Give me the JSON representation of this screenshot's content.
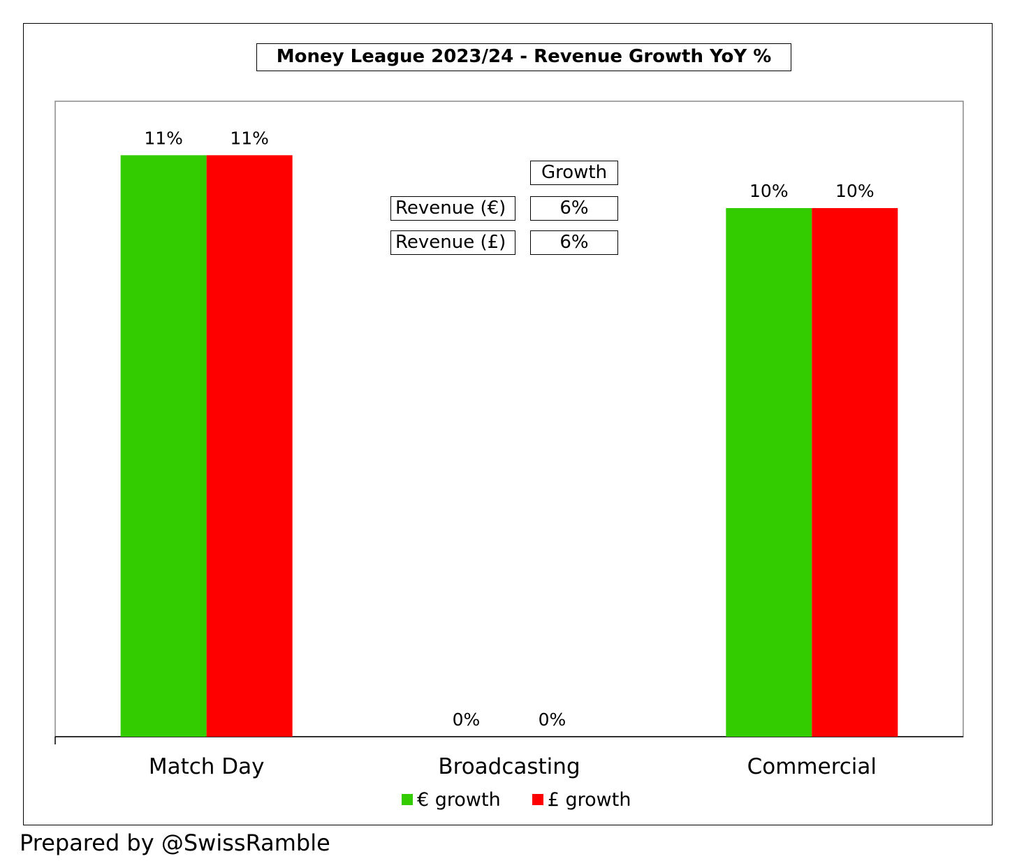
{
  "footer": {
    "credit": "Prepared by @SwissRamble"
  },
  "summary_table": {
    "header": "Growth",
    "rows": [
      {
        "label": "Revenue (€)",
        "value": "6%"
      },
      {
        "label": "Revenue (£)",
        "value": "6%"
      }
    ]
  },
  "chart_data": {
    "type": "bar",
    "title": "Money League 2023/24 - Revenue Growth YoY %",
    "categories": [
      "Match Day",
      "Broadcasting",
      "Commercial"
    ],
    "series": [
      {
        "name": "€ growth",
        "values": [
          11,
          0,
          10
        ],
        "labels": [
          "11%",
          "0%",
          "10%"
        ],
        "color": "#33cc00"
      },
      {
        "name": "£ growth",
        "values": [
          11,
          0,
          10
        ],
        "labels": [
          "11%",
          "0%",
          "10%"
        ],
        "color": "#ff0000"
      }
    ],
    "unit": "%",
    "ylim": [
      0,
      12
    ],
    "grid": false,
    "legend_position": "bottom"
  }
}
